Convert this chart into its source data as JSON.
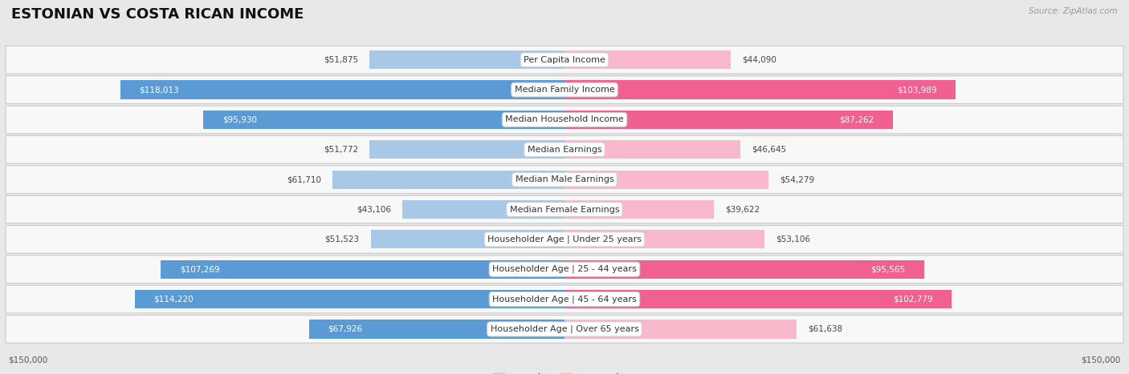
{
  "title": "ESTONIAN VS COSTA RICAN INCOME",
  "source": "Source: ZipAtlas.com",
  "max_val": 150000,
  "categories": [
    "Per Capita Income",
    "Median Family Income",
    "Median Household Income",
    "Median Earnings",
    "Median Male Earnings",
    "Median Female Earnings",
    "Householder Age | Under 25 years",
    "Householder Age | 25 - 44 years",
    "Householder Age | 45 - 64 years",
    "Householder Age | Over 65 years"
  ],
  "estonian": [
    51875,
    118013,
    95930,
    51772,
    61710,
    43106,
    51523,
    107269,
    114220,
    67926
  ],
  "costa_rican": [
    44090,
    103989,
    87262,
    46645,
    54279,
    39622,
    53106,
    95565,
    102779,
    61638
  ],
  "estonian_light": "#a8c8e8",
  "estonian_dark": "#5b9bd5",
  "costa_rican_light": "#f9b8cb",
  "costa_rican_dark": "#f06090",
  "bg_color": "#e8e8e8",
  "row_bg": "#f8f8f8",
  "row_edge": "#cccccc",
  "title_fontsize": 13,
  "label_fontsize": 8,
  "value_fontsize": 7.5,
  "legend_fontsize": 8.5,
  "large_threshold": 65000
}
